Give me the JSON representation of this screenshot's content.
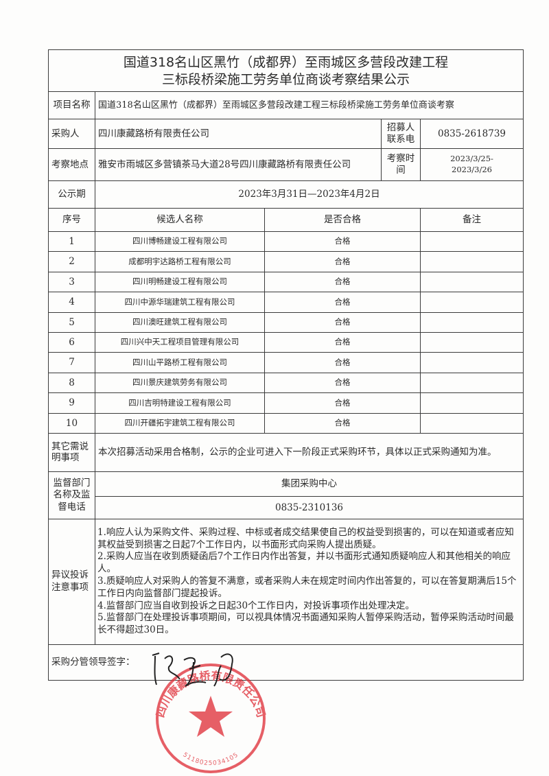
{
  "title_line1": "国道318名山区黑竹（成都界）至雨城区多营段改建工程",
  "title_line2": "三标段桥梁施工劳务单位商谈考察结果公示",
  "project": {
    "label": "项目名称",
    "value": "国道318名山区黑竹（成都界）至雨城区多营段改建工程三标段桥梁施工劳务单位商谈考察"
  },
  "buyer": {
    "label": "采购人",
    "value": "四川康藏路桥有限责任公司",
    "contact_label": "招募人联系电",
    "contact_value": "0835-2618739"
  },
  "site": {
    "label": "考察地点",
    "value": "雅安市雨城区多营镇茶马大道28号四川康藏路桥有限责任公司",
    "time_label": "考察时间",
    "time_value_1": "2023/3/25-",
    "time_value_2": "2023/3/26"
  },
  "period": {
    "label": "公示期",
    "value": "2023年3月31日—2023年4月2日"
  },
  "candidates": {
    "headers": [
      "序号",
      "候选人名称",
      "是否合格",
      "备注"
    ],
    "rows": [
      {
        "no": "1",
        "name": "四川博畅建设工程有限公司",
        "result": "合格",
        "note": ""
      },
      {
        "no": "2",
        "name": "成都明宇达路桥工程有限公司",
        "result": "合格",
        "note": ""
      },
      {
        "no": "3",
        "name": "四川明畅建设工程有限公司",
        "result": "合格",
        "note": ""
      },
      {
        "no": "4",
        "name": "四川中源华瑞建筑工程有限公司",
        "result": "合格",
        "note": ""
      },
      {
        "no": "5",
        "name": "四川澳旺建筑工程有限公司",
        "result": "合格",
        "note": ""
      },
      {
        "no": "6",
        "name": "四川兴中天工程项目管理有限公司",
        "result": "合格",
        "note": ""
      },
      {
        "no": "7",
        "name": "四川山平路桥工程有限公司",
        "result": "合格",
        "note": ""
      },
      {
        "no": "8",
        "name": "四川景庆建筑劳务有限公司",
        "result": "合格",
        "note": ""
      },
      {
        "no": "9",
        "name": "四川吉明特建设工程有限公司",
        "result": "合格",
        "note": ""
      },
      {
        "no": "10",
        "name": "四川开疆拓宇建筑工程有限公司",
        "result": "合格",
        "note": ""
      }
    ]
  },
  "other": {
    "label": "其它需说明事项",
    "value": "本次招募活动采用合格制，公示的企业可进入下一阶段正式采购环节，具体以正式采购通知为准。"
  },
  "supervision": {
    "label": "监督部门名称及监督电话",
    "name": "集团采购中心",
    "phone": "0835-2310136"
  },
  "objection": {
    "label": "异议投诉注意事项",
    "items": [
      "1.响应人认为采购文件、采购过程、中标或者成交结果使自己的权益受到损害的，可以在知道或者应知其权益受到损害之日起7个工作日内，以书面形式向采购人提出质疑。",
      "2.采购人应当在收到质疑函后7个工作日内作出答复，并以书面形式通知质疑响应人和其他相关的响应人。",
      "3.质疑响应人对采购人的答复不满意，或者采购人未在规定时间内作出答复的，可以在答复期满后15个工作日内向监督部门提起投诉。",
      "4.监督部门应当自收到投诉之日起30个工作日内，对投诉事项作出处理决定。",
      "5.监督部门在处理投诉事项期间，可以视具体情况书面通知采购人暂停采购活动，暂停采购活动时间最长不得超过30日。"
    ]
  },
  "signature": {
    "label": "采购分管领导签字："
  },
  "seal": {
    "text": "四川康藏路桥有限责任公司",
    "number": "5118025034105",
    "color": "#e0333d"
  }
}
